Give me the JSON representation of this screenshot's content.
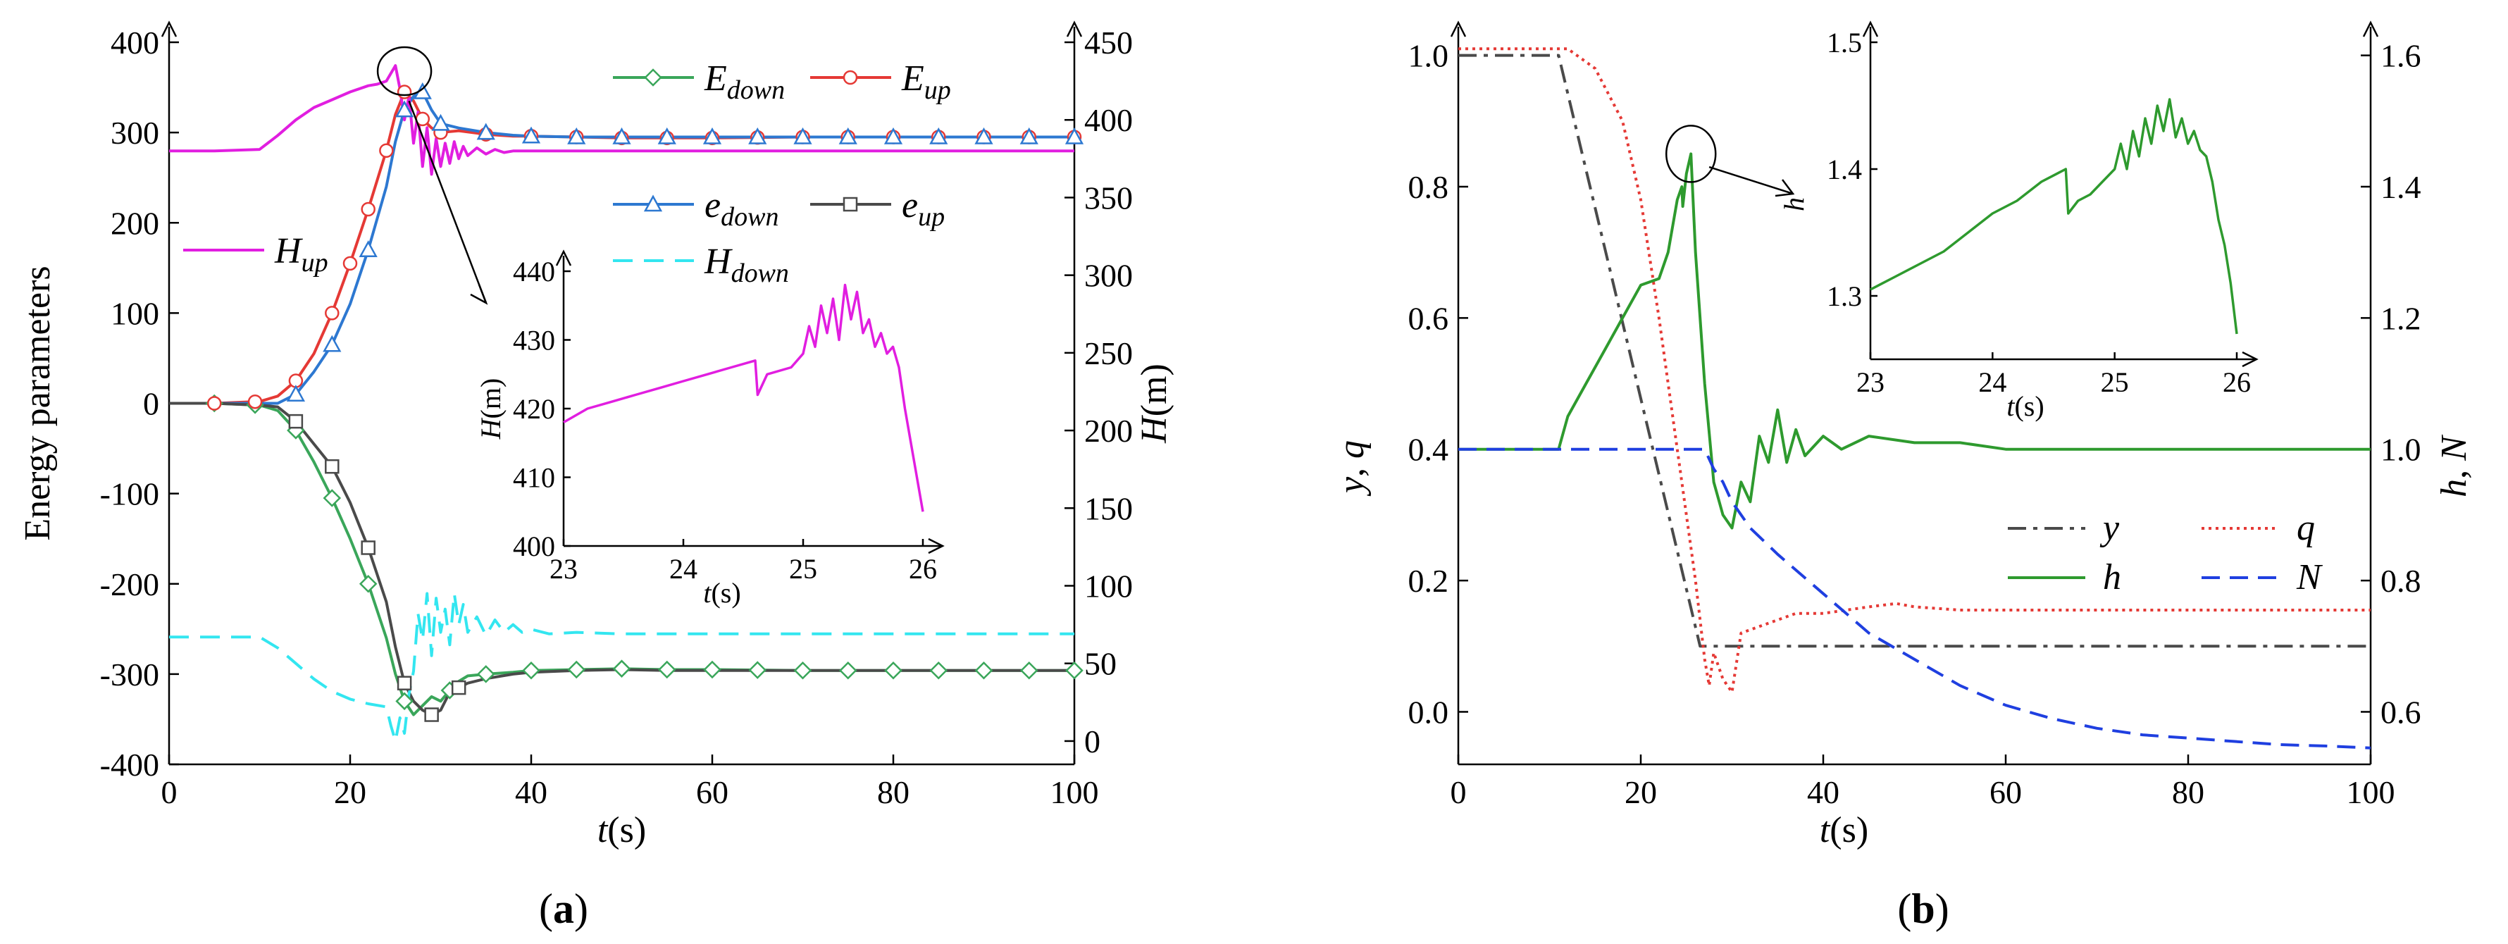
{
  "figure": {
    "panel_a_label": {
      "open": "(",
      "letter": "a",
      "close": ")"
    },
    "panel_b_label": {
      "open": "(",
      "letter": "b",
      "close": ")"
    }
  },
  "chart_data": [
    {
      "id": "a",
      "type": "line",
      "xlabel": {
        "var": "t",
        "unit": "(s)"
      },
      "ylabel": "Energy parameters",
      "y2label": {
        "var": "H",
        "unit": "(m)"
      },
      "xlim": [
        0,
        100
      ],
      "ylim": [
        -400,
        400
      ],
      "y2lim": [
        -15,
        450
      ],
      "xticks": [
        0,
        20,
        40,
        60,
        80,
        100
      ],
      "yticks": [
        -400,
        -300,
        -200,
        -100,
        0,
        100,
        200,
        300,
        400
      ],
      "y2ticks": [
        0,
        50,
        100,
        150,
        200,
        250,
        300,
        350,
        400,
        450
      ],
      "legend": [
        {
          "key": "E_down",
          "base": "E",
          "sub": "down",
          "color": "#3aa65a",
          "marker": "diamond",
          "dash": ""
        },
        {
          "key": "E_up",
          "base": "E",
          "sub": "up",
          "color": "#e53935",
          "marker": "circle",
          "dash": ""
        },
        {
          "key": "e_down",
          "base": "e",
          "sub": "down",
          "color": "#2d78d1",
          "marker": "triangle",
          "dash": ""
        },
        {
          "key": "e_up",
          "base": "e",
          "sub": "up",
          "color": "#4a4a4a",
          "marker": "square",
          "dash": ""
        },
        {
          "key": "H_up",
          "base": "H",
          "sub": "up",
          "color": "#e11ee0",
          "marker": "",
          "dash": ""
        },
        {
          "key": "H_down",
          "base": "H",
          "sub": "down",
          "color": "#33e6f0",
          "marker": "",
          "dash": "28,16"
        }
      ],
      "series": [
        {
          "name": "E_down",
          "axis": "y",
          "x": [
            0,
            5,
            10,
            12,
            14,
            16,
            18,
            20,
            22,
            24,
            25,
            26,
            27,
            28,
            29,
            30,
            31,
            32,
            33,
            35,
            38,
            40,
            45,
            50,
            55,
            60,
            70,
            80,
            90,
            100
          ],
          "values": [
            0,
            0,
            -2,
            -8,
            -30,
            -65,
            -105,
            -150,
            -200,
            -260,
            -300,
            -330,
            -345,
            -335,
            -325,
            -330,
            -318,
            -308,
            -302,
            -300,
            -298,
            -296,
            -295,
            -294,
            -295,
            -295,
            -296,
            -296,
            -296,
            -296
          ]
        },
        {
          "name": "E_up",
          "axis": "y",
          "x": [
            0,
            5,
            10,
            12,
            14,
            16,
            18,
            20,
            22,
            24,
            25,
            26,
            27,
            28,
            29,
            30,
            32,
            35,
            38,
            40,
            45,
            50,
            60,
            70,
            80,
            90,
            100
          ],
          "values": [
            0,
            0,
            2,
            8,
            25,
            55,
            100,
            155,
            215,
            280,
            320,
            345,
            335,
            315,
            305,
            300,
            302,
            298,
            296,
            296,
            295,
            294,
            294,
            295,
            295,
            295,
            295
          ]
        },
        {
          "name": "e_down",
          "axis": "y",
          "x": [
            0,
            5,
            10,
            12,
            14,
            16,
            18,
            20,
            22,
            24,
            25,
            26,
            27,
            28,
            29,
            30,
            32,
            35,
            38,
            40,
            45,
            50,
            60,
            70,
            80,
            90,
            100
          ],
          "values": [
            0,
            0,
            0,
            0,
            10,
            35,
            65,
            110,
            170,
            240,
            290,
            325,
            340,
            345,
            325,
            310,
            305,
            300,
            297,
            296,
            295,
            295,
            295,
            295,
            295,
            295,
            295
          ]
        },
        {
          "name": "e_up",
          "axis": "y",
          "x": [
            0,
            5,
            10,
            12,
            14,
            16,
            18,
            20,
            22,
            24,
            25,
            26,
            27,
            28,
            29,
            30,
            31,
            32,
            33,
            35,
            38,
            40,
            45,
            50,
            55,
            60,
            70,
            80,
            90,
            100
          ],
          "values": [
            0,
            0,
            -2,
            -4,
            -20,
            -45,
            -70,
            -110,
            -160,
            -220,
            -270,
            -310,
            -330,
            -340,
            -345,
            -340,
            -320,
            -315,
            -310,
            -305,
            -300,
            -298,
            -296,
            -295,
            -296,
            -296,
            -296,
            -296,
            -296,
            -296
          ]
        },
        {
          "name": "H_up",
          "axis": "y2",
          "x": [
            0,
            5,
            10,
            12,
            14,
            16,
            18,
            20,
            22,
            23,
            24,
            25,
            25.5,
            26,
            26.5,
            27,
            27.5,
            28,
            28.5,
            29,
            29.5,
            30,
            30.5,
            31,
            31.5,
            32,
            32.5,
            33,
            34,
            35,
            36,
            37,
            38,
            40,
            45,
            50,
            60,
            80,
            100
          ],
          "values": [
            380,
            380,
            381,
            390,
            400,
            408,
            413,
            418,
            422,
            423,
            425,
            435,
            420,
            400,
            415,
            385,
            405,
            370,
            395,
            365,
            388,
            370,
            385,
            372,
            386,
            375,
            383,
            377,
            382,
            378,
            381,
            379,
            380,
            380,
            380,
            380,
            380,
            380,
            380
          ]
        },
        {
          "name": "H_down",
          "axis": "y2",
          "x": [
            0,
            5,
            10,
            12,
            14,
            16,
            18,
            20,
            22,
            24,
            24.5,
            25,
            25.5,
            26,
            26.5,
            27,
            27.5,
            28,
            28.5,
            29,
            29.5,
            30,
            30.5,
            31,
            31.5,
            32,
            32.5,
            33,
            34,
            35,
            36,
            37,
            38,
            39,
            40,
            42,
            45,
            50,
            60,
            80,
            100
          ],
          "values": [
            67,
            67,
            67,
            60,
            50,
            40,
            32,
            27,
            24,
            22,
            10,
            0,
            15,
            5,
            30,
            45,
            82,
            65,
            95,
            55,
            92,
            70,
            85,
            62,
            95,
            75,
            88,
            70,
            80,
            68,
            78,
            70,
            75,
            70,
            72,
            69,
            70,
            69,
            69,
            69,
            69
          ]
        }
      ],
      "markers": {
        "E_down": [
          5,
          9.5,
          14,
          18,
          22,
          26,
          31,
          35,
          40,
          45,
          50,
          55,
          60,
          65,
          70,
          75,
          80,
          85,
          90,
          95,
          100
        ],
        "E_up": [
          5,
          9.5,
          14,
          18,
          20,
          22,
          24,
          26,
          28,
          30,
          35,
          40,
          45,
          50,
          55,
          60,
          65,
          70,
          75,
          80,
          85,
          90,
          95,
          100
        ],
        "e_down": [
          14,
          18,
          22,
          26,
          28,
          30,
          35,
          40,
          45,
          50,
          55,
          60,
          65,
          70,
          75,
          80,
          85,
          90,
          95,
          100
        ],
        "e_up": [
          14,
          18,
          22,
          26,
          29,
          32
        ]
      },
      "inset": {
        "xlabel": {
          "var": "t",
          "unit": "(s)"
        },
        "ylabel": {
          "var": "H",
          "unit": "(m)"
        },
        "xlim": [
          23,
          26
        ],
        "ylim": [
          400,
          440
        ],
        "xticks": [
          23,
          24,
          25,
          26
        ],
        "yticks": [
          400,
          410,
          420,
          430,
          440
        ],
        "x": [
          23,
          23.2,
          23.4,
          23.6,
          23.8,
          24,
          24.2,
          24.4,
          24.6,
          24.62,
          24.7,
          24.9,
          25,
          25.05,
          25.1,
          25.15,
          25.2,
          25.25,
          25.3,
          25.35,
          25.4,
          25.45,
          25.5,
          25.55,
          25.6,
          25.65,
          25.7,
          25.75,
          25.8,
          25.85,
          25.9,
          25.95,
          26
        ],
        "values": [
          418,
          420,
          421,
          422,
          423,
          424,
          425,
          426,
          427,
          422,
          425,
          426,
          428,
          432,
          429,
          435,
          431,
          436,
          430,
          438,
          433,
          437,
          431,
          433,
          429,
          431,
          428,
          429,
          426,
          420,
          415,
          410,
          405
        ]
      }
    },
    {
      "id": "b",
      "type": "line",
      "xlabel": {
        "var": "t",
        "unit": "(s)"
      },
      "ylabel": {
        "a": "y",
        "sep": ", ",
        "b": "q"
      },
      "y2label": {
        "a": "h",
        "sep": ", ",
        "b": "N"
      },
      "xlim": [
        0,
        100
      ],
      "ylim": [
        -0.08,
        1.02
      ],
      "y2lim": [
        0.52,
        1.62
      ],
      "xticks": [
        0,
        20,
        40,
        60,
        80,
        100
      ],
      "yticks": [
        0.0,
        0.2,
        0.4,
        0.6,
        0.8,
        1.0
      ],
      "y2ticks": [
        0.6,
        0.8,
        1.0,
        1.2,
        1.4,
        1.6
      ],
      "legend": [
        {
          "key": "y",
          "label": "y",
          "color": "#4a4a4a",
          "dash": "26,10,6,10"
        },
        {
          "key": "q",
          "label": "q",
          "color": "#e53935",
          "dash": "4,6"
        },
        {
          "key": "h",
          "label": "h",
          "color": "#2e9a2e",
          "dash": ""
        },
        {
          "key": "N",
          "label": "N",
          "color": "#1f3fe0",
          "dash": "26,14"
        }
      ],
      "series": [
        {
          "name": "y",
          "axis": "y",
          "x": [
            0,
            11,
            26.5,
            27,
            100
          ],
          "values": [
            1.0,
            1.0,
            0.1,
            0.1,
            0.1
          ]
        },
        {
          "name": "q",
          "axis": "y",
          "x": [
            0,
            12,
            15,
            18,
            20,
            22,
            24,
            26,
            27,
            27.5,
            28,
            29,
            30,
            31,
            33,
            35,
            37,
            40,
            45,
            48,
            50,
            55,
            60,
            70,
            80,
            90,
            100
          ],
          "values": [
            1.01,
            1.01,
            0.98,
            0.9,
            0.78,
            0.6,
            0.4,
            0.2,
            0.08,
            0.04,
            0.09,
            0.05,
            0.03,
            0.12,
            0.13,
            0.14,
            0.15,
            0.15,
            0.16,
            0.165,
            0.16,
            0.155,
            0.155,
            0.155,
            0.155,
            0.155,
            0.155
          ]
        },
        {
          "name": "h",
          "axis": "y2",
          "x": [
            0,
            11,
            12,
            14,
            16,
            18,
            20,
            22,
            23,
            24,
            24.5,
            24.6,
            25,
            25.5,
            26,
            27,
            28,
            29,
            30,
            31,
            32,
            33,
            34,
            35,
            36,
            37,
            38,
            40,
            42,
            45,
            50,
            55,
            60,
            70,
            80,
            90,
            100
          ],
          "values": [
            1.0,
            1.0,
            1.05,
            1.1,
            1.15,
            1.2,
            1.25,
            1.26,
            1.3,
            1.38,
            1.4,
            1.37,
            1.42,
            1.45,
            1.3,
            1.1,
            0.95,
            0.9,
            0.88,
            0.95,
            0.92,
            1.02,
            0.98,
            1.06,
            0.98,
            1.03,
            0.99,
            1.02,
            1.0,
            1.02,
            1.01,
            1.01,
            1.0,
            1.0,
            1.0,
            1.0,
            1.0
          ]
        },
        {
          "name": "N",
          "axis": "y2",
          "x": [
            0,
            27,
            28,
            29,
            30,
            32,
            35,
            40,
            45,
            50,
            55,
            60,
            65,
            70,
            75,
            80,
            85,
            90,
            95,
            100
          ],
          "values": [
            1.0,
            1.0,
            0.97,
            0.95,
            0.92,
            0.88,
            0.84,
            0.78,
            0.72,
            0.68,
            0.64,
            0.61,
            0.59,
            0.575,
            0.565,
            0.56,
            0.555,
            0.55,
            0.548,
            0.545
          ]
        }
      ],
      "inset": {
        "xlabel": {
          "var": "t",
          "unit": "(s)"
        },
        "ylabel": {
          "var": "h",
          "unit": ""
        },
        "xlim": [
          23,
          26
        ],
        "ylim": [
          1.25,
          1.5
        ],
        "xticks": [
          23,
          24,
          25,
          26
        ],
        "yticks": [
          1.3,
          1.4,
          1.5
        ],
        "x": [
          23,
          23.2,
          23.4,
          23.6,
          23.8,
          24,
          24.2,
          24.4,
          24.6,
          24.62,
          24.7,
          24.8,
          24.9,
          25,
          25.05,
          25.1,
          25.15,
          25.2,
          25.25,
          25.3,
          25.35,
          25.4,
          25.45,
          25.5,
          25.55,
          25.6,
          25.65,
          25.7,
          25.75,
          25.8,
          25.85,
          25.9,
          25.95,
          26
        ],
        "values": [
          1.305,
          1.315,
          1.325,
          1.335,
          1.35,
          1.365,
          1.375,
          1.39,
          1.4,
          1.365,
          1.375,
          1.38,
          1.39,
          1.4,
          1.42,
          1.4,
          1.43,
          1.41,
          1.44,
          1.42,
          1.45,
          1.43,
          1.455,
          1.425,
          1.44,
          1.42,
          1.43,
          1.415,
          1.41,
          1.39,
          1.36,
          1.34,
          1.31,
          1.27
        ]
      }
    }
  ]
}
